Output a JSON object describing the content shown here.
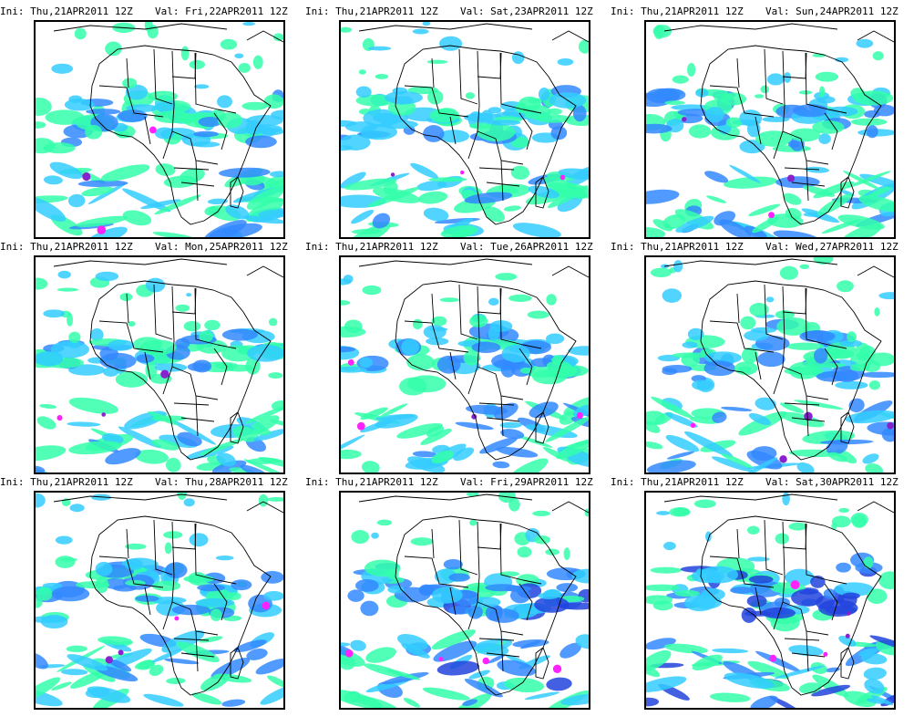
{
  "panels": [
    {
      "ini": "Ini: Thu,21APR2011 12Z",
      "val": "Val: Fri,22APR2011 12Z",
      "seed": 1,
      "intensity": 1.0
    },
    {
      "ini": "Ini: Thu,21APR2011 12Z",
      "val": "Val: Sat,23APR2011 12Z",
      "seed": 2,
      "intensity": 1.0
    },
    {
      "ini": "Ini: Thu,21APR2011 12Z",
      "val": "Val: Sun,24APR2011 12Z",
      "seed": 3,
      "intensity": 1.1
    },
    {
      "ini": "Ini: Thu,21APR2011 12Z",
      "val": "Val: Mon,25APR2011 12Z",
      "seed": 4,
      "intensity": 1.1
    },
    {
      "ini": "Ini: Thu,21APR2011 12Z",
      "val": "Val: Tue,26APR2011 12Z",
      "seed": 5,
      "intensity": 1.2
    },
    {
      "ini": "Ini: Thu,21APR2011 12Z",
      "val": "Val: Wed,27APR2011 12Z",
      "seed": 6,
      "intensity": 1.2
    },
    {
      "ini": "Ini: Thu,21APR2011 12Z",
      "val": "Val: Thu,28APR2011 12Z",
      "seed": 7,
      "intensity": 1.2
    },
    {
      "ini": "Ini: Thu,21APR2011 12Z",
      "val": "Val: Fri,29APR2011 12Z",
      "seed": 8,
      "intensity": 1.3
    },
    {
      "ini": "Ini: Thu,21APR2011 12Z",
      "val": "Val: Sat,30APR2011 12Z",
      "seed": 9,
      "intensity": 1.6
    }
  ],
  "colors": {
    "light": "#33ffaa",
    "cyan": "#33ccff",
    "blue": "#3388ff",
    "deep": "#2244dd",
    "purple": "#8822cc",
    "magenta": "#ff22ff",
    "coast": "#000000"
  }
}
